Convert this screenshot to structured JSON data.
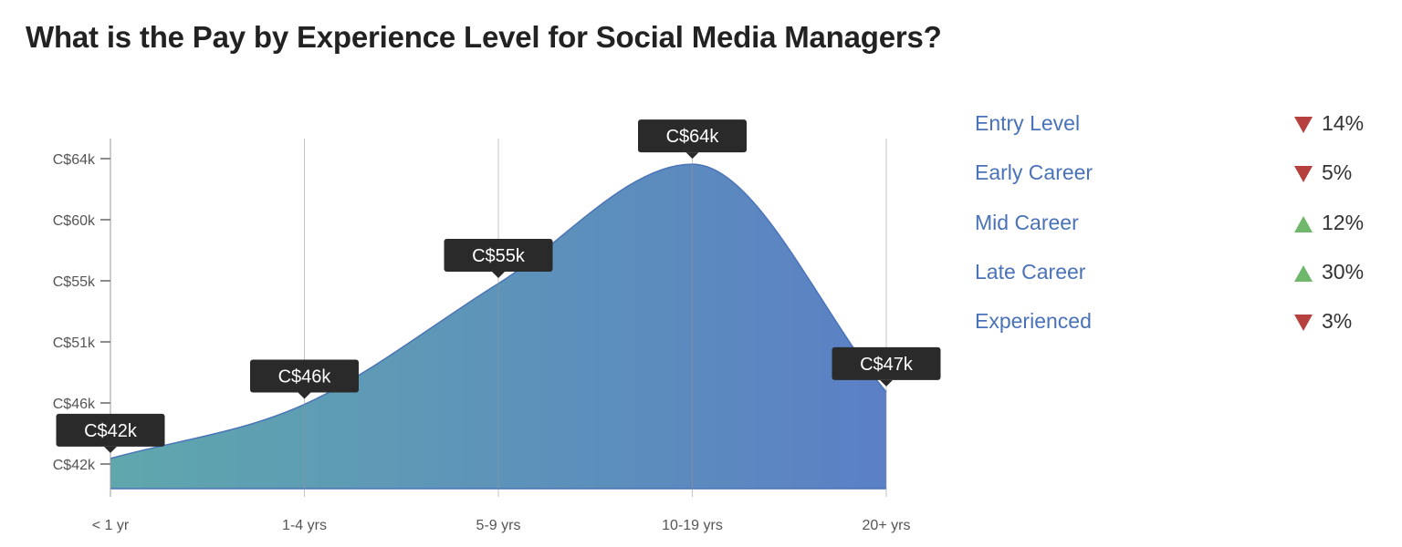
{
  "title": "What is the Pay by Experience Level for Social Media Managers?",
  "chart_data": {
    "type": "area",
    "title": "What is the Pay by Experience Level for Social Media Managers?",
    "categories": [
      "< 1 yr",
      "1-4 yrs",
      "5-9 yrs",
      "10-19 yrs",
      "20+ yrs"
    ],
    "values": [
      42.3,
      46.2,
      54.9,
      63.5,
      47.1
    ],
    "unit": "C$ thousands",
    "data_labels": [
      "C$42k",
      "C$46k",
      "C$55k",
      "C$64k",
      "C$47k"
    ],
    "y_tick_labels": [
      "C$42k",
      "C$46k",
      "C$51k",
      "C$55k",
      "C$60k",
      "C$64k"
    ],
    "y_tick_values": [
      41.9,
      46.3,
      50.7,
      55.1,
      59.5,
      63.9
    ],
    "ylim": [
      40.3,
      65.2
    ],
    "grid": "vertical",
    "colors": {
      "gradient_start": "#5fa7ad",
      "gradient_end": "#5b80c5",
      "line": "#4a74b8",
      "label_bg": "#2a2a2a"
    }
  },
  "legend": [
    {
      "label": "Entry Level",
      "change": "14%",
      "direction": "down"
    },
    {
      "label": "Early Career",
      "change": "5%",
      "direction": "down"
    },
    {
      "label": "Mid Career",
      "change": "12%",
      "direction": "up"
    },
    {
      "label": "Late Career",
      "change": "30%",
      "direction": "up"
    },
    {
      "label": "Experienced",
      "change": "3%",
      "direction": "down"
    }
  ]
}
